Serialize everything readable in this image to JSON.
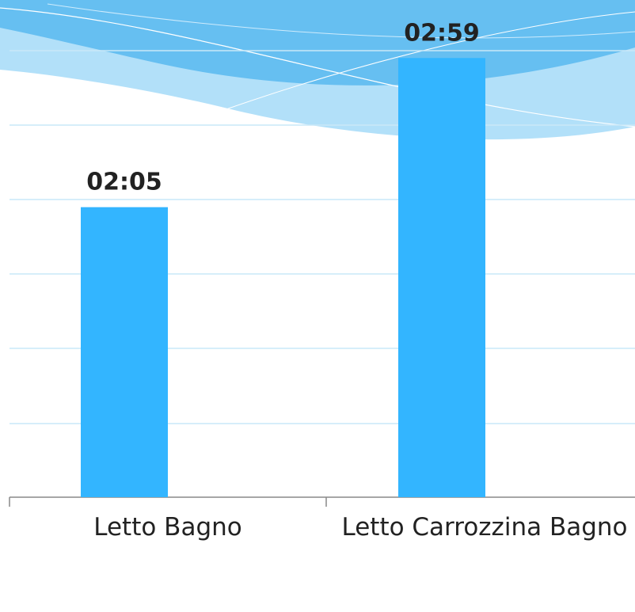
{
  "chart_data": {
    "type": "bar",
    "categories": [
      "Letto Bagno",
      "Letto Carrozzina Bagno"
    ],
    "values": [
      125,
      179
    ],
    "value_labels": [
      "02:05",
      "02:59"
    ],
    "color": "#33b5ff",
    "ylim": [
      20,
      200
    ]
  }
}
